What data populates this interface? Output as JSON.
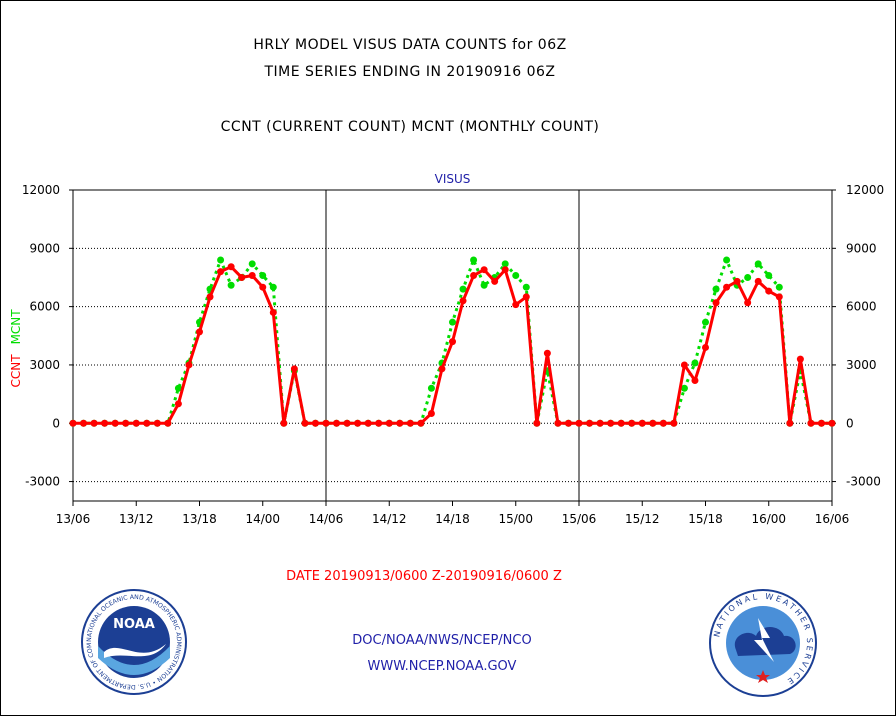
{
  "header": {
    "line1": "HRLY MODEL VISUS DATA COUNTS for 06Z",
    "line2": "TIME SERIES ENDING IN 20190916 06Z",
    "line3": "CCNT (CURRENT COUNT) MCNT (MONTHLY COUNT)"
  },
  "footer": {
    "org": "DOC/NOAA/NWS/NCEP/NCO",
    "url": "WWW.NCEP.NOAA.GOV"
  },
  "logos": {
    "noaa_text": "NOAA",
    "noaa_ring": "NATIONAL OCEANIC AND ATMOSPHERIC ADMINISTRATION • U.S. DEPARTMENT OF COMMERCE",
    "nws_ring": "NATIONAL WEATHER SERVICE"
  },
  "colors": {
    "ccnt": "#ff0000",
    "mcnt": "#00dd00",
    "title_blue": "#1f1fa8",
    "date_red": "#ff0000"
  },
  "chart_data": {
    "type": "line",
    "title": "VISUS",
    "ylabel_left": [
      "CCNT",
      "MCNT"
    ],
    "xlabel": "DATE 20190913/0600 Z-20190916/0600 Z",
    "ylim": [
      -4000,
      12000
    ],
    "yticks": [
      -3000,
      0,
      3000,
      6000,
      9000,
      12000
    ],
    "ytick_labels": [
      "-3000",
      "0",
      "3000",
      "6000",
      "9000",
      "12000"
    ],
    "xlim": [
      0,
      72
    ],
    "xticks": [
      0,
      6,
      12,
      18,
      24,
      30,
      36,
      42,
      48,
      54,
      60,
      66,
      72
    ],
    "xtick_labels": [
      "13/06",
      "13/12",
      "13/18",
      "14/00",
      "14/06",
      "14/12",
      "14/18",
      "15/00",
      "15/06",
      "15/12",
      "15/18",
      "16/00",
      "16/06"
    ],
    "day_dividers": [
      24,
      48
    ],
    "grid": "horizontal dotted",
    "x": [
      0,
      1,
      2,
      3,
      4,
      5,
      6,
      7,
      8,
      9,
      10,
      11,
      12,
      13,
      14,
      15,
      16,
      17,
      18,
      19,
      20,
      21,
      22,
      23,
      24,
      25,
      26,
      27,
      28,
      29,
      30,
      31,
      32,
      33,
      34,
      35,
      36,
      37,
      38,
      39,
      40,
      41,
      42,
      43,
      44,
      45,
      46,
      47,
      48,
      49,
      50,
      51,
      52,
      53,
      54,
      55,
      56,
      57,
      58,
      59,
      60,
      61,
      62,
      63,
      64,
      65,
      66,
      67,
      68,
      69,
      70,
      71,
      72
    ],
    "series": [
      {
        "name": "CCNT",
        "color": "#ff0000",
        "style": "solid",
        "values": [
          0,
          0,
          0,
          0,
          0,
          0,
          0,
          0,
          0,
          0,
          1000,
          3000,
          4700,
          6500,
          7800,
          8050,
          7500,
          7600,
          7000,
          5700,
          0,
          2800,
          0,
          0,
          0,
          0,
          0,
          0,
          0,
          0,
          0,
          0,
          0,
          0,
          500,
          2800,
          4200,
          6300,
          7600,
          7900,
          7300,
          7900,
          6100,
          6500,
          0,
          3600,
          0,
          0,
          0,
          0,
          0,
          0,
          0,
          0,
          0,
          0,
          0,
          0,
          3000,
          2200,
          3900,
          6200,
          7000,
          7300,
          6200,
          7300,
          6800,
          6500,
          0,
          3300,
          0,
          0,
          0
        ]
      },
      {
        "name": "MCNT",
        "color": "#00dd00",
        "style": "dotted",
        "values": [
          0,
          0,
          0,
          0,
          0,
          0,
          0,
          0,
          0,
          0,
          1800,
          3100,
          5200,
          6900,
          8400,
          7100,
          7500,
          8200,
          7600,
          7000,
          0,
          2700,
          0,
          0,
          0,
          0,
          0,
          0,
          0,
          0,
          0,
          0,
          0,
          0,
          1800,
          3100,
          5200,
          6900,
          8400,
          7100,
          7500,
          8200,
          7600,
          7000,
          0,
          2700,
          0,
          0,
          0,
          0,
          0,
          0,
          0,
          0,
          0,
          0,
          0,
          0,
          1800,
          3100,
          5200,
          6900,
          8400,
          7100,
          7500,
          8200,
          7600,
          7000,
          0,
          2700,
          0,
          0,
          0
        ]
      }
    ]
  }
}
